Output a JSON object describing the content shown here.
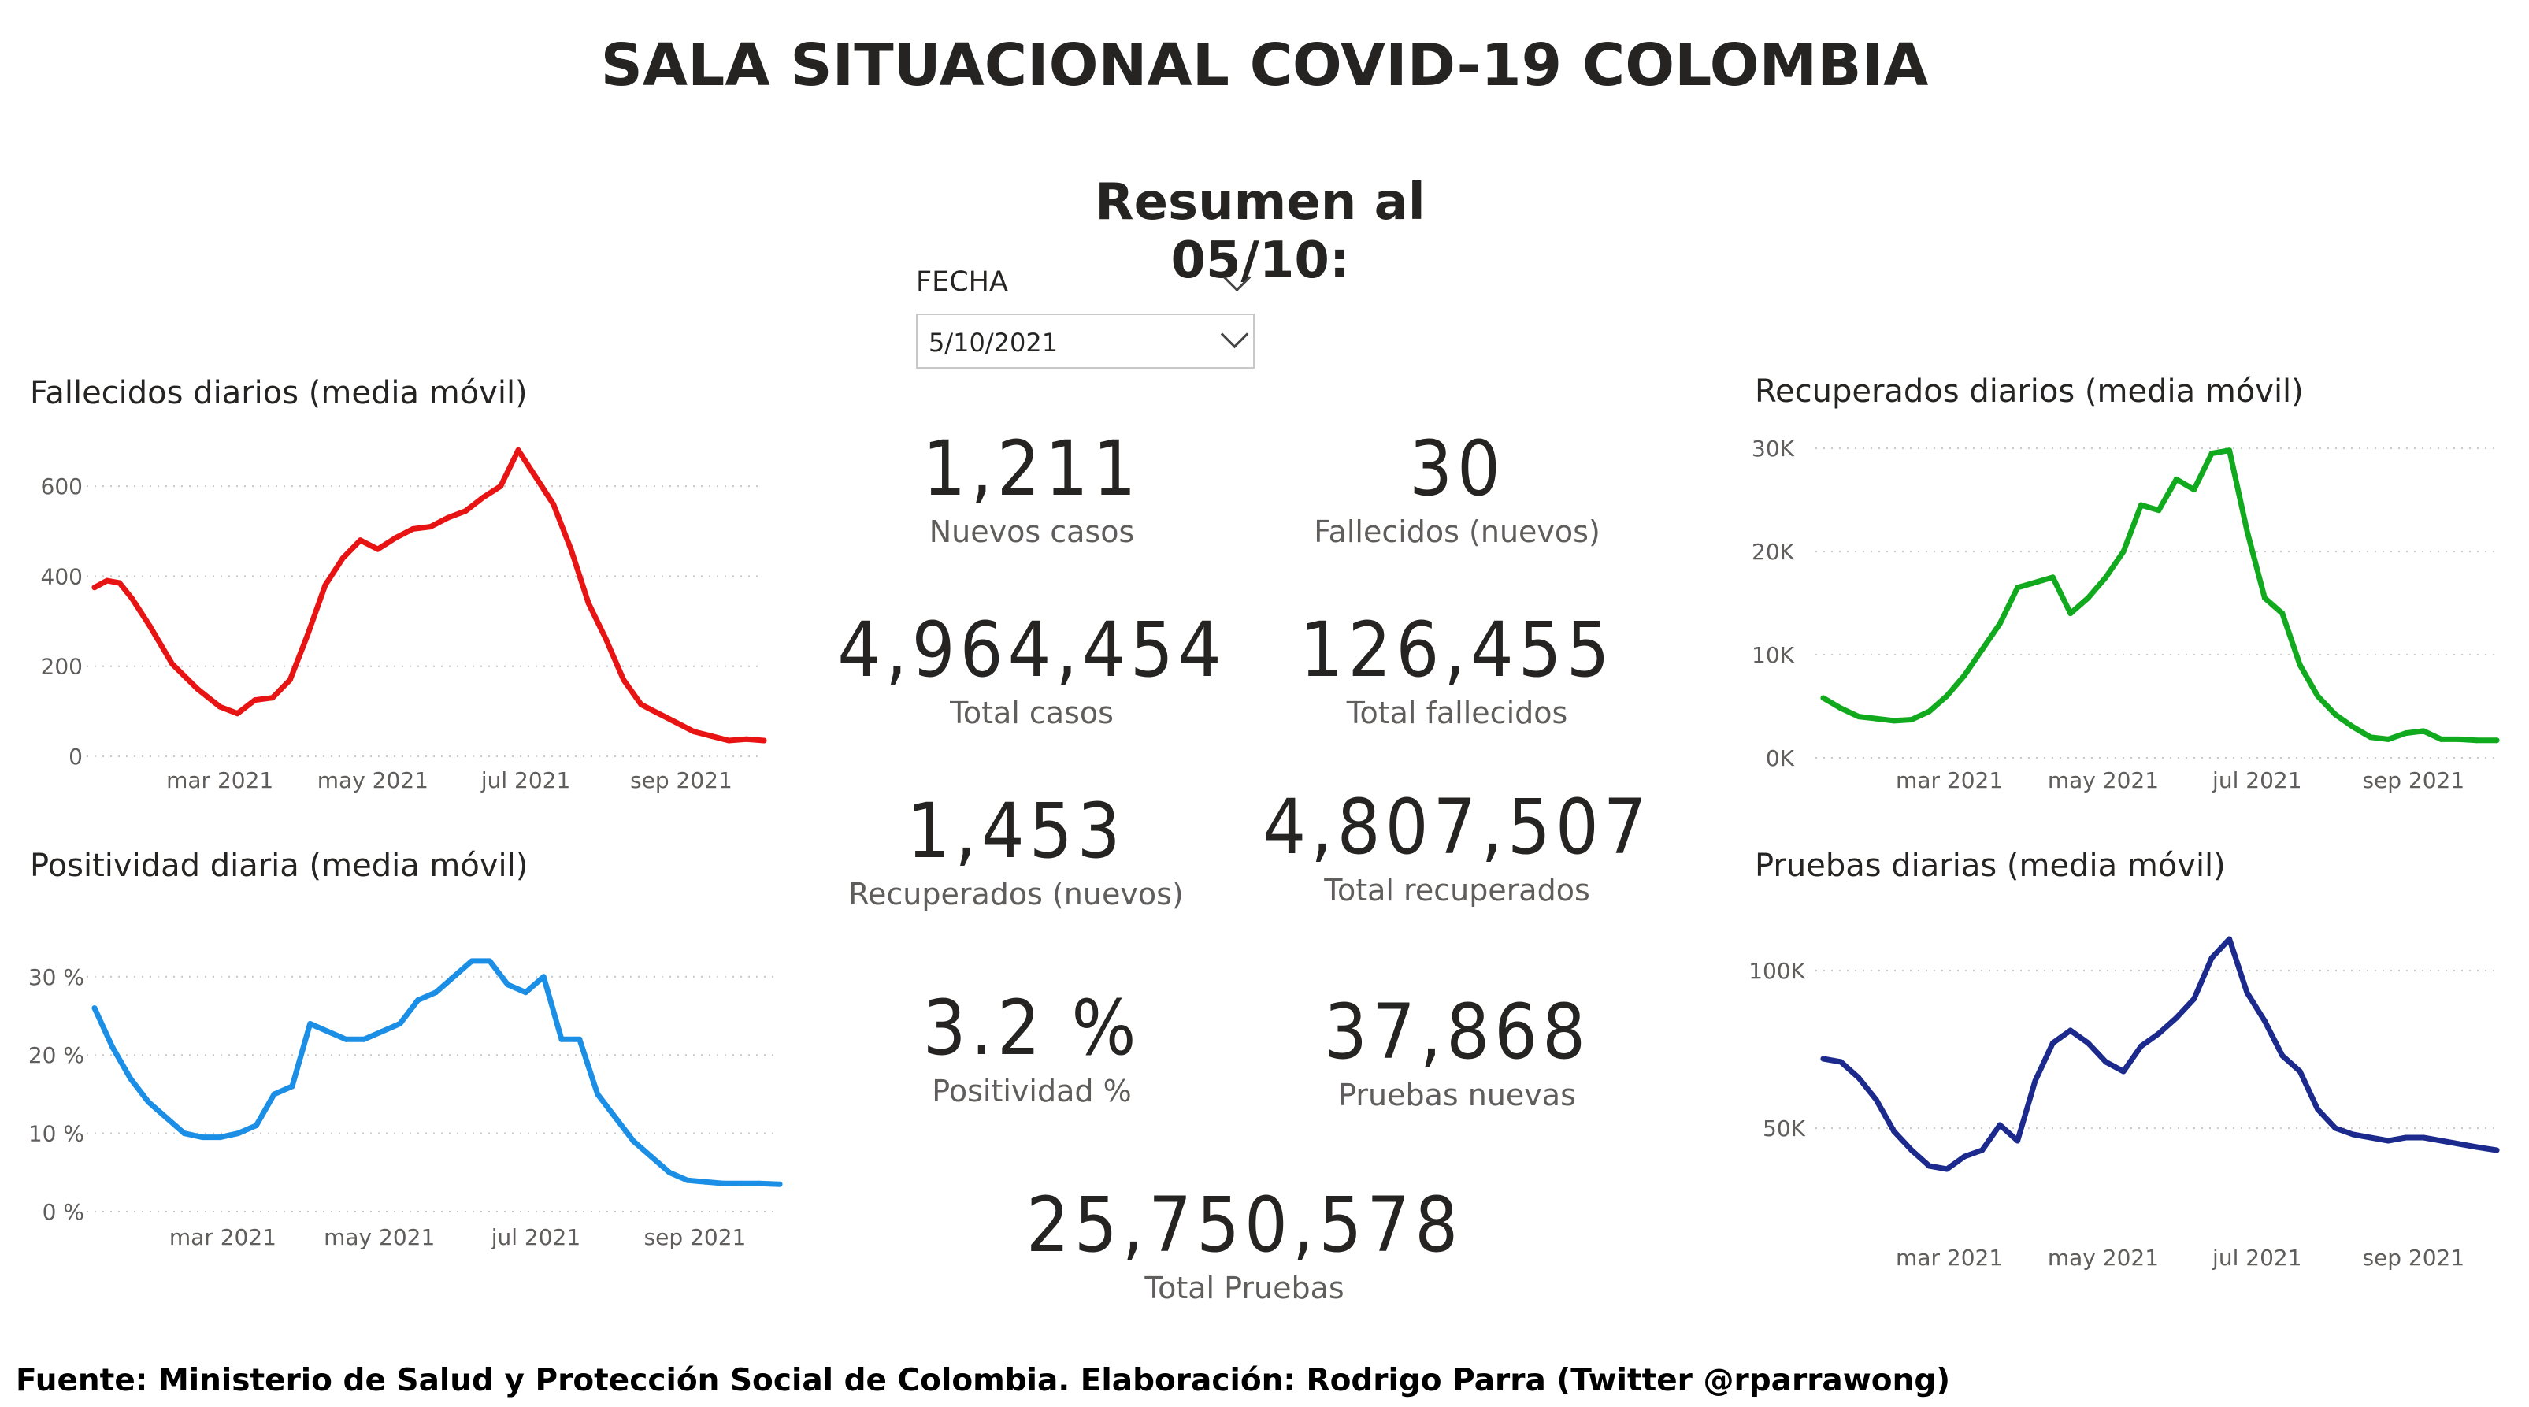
{
  "title": "SALA SITUACIONAL COVID-19 COLOMBIA",
  "subtitle": "Resumen al 05/10:",
  "slicer": {
    "label": "FECHA",
    "value": "5/10/2021"
  },
  "kpis": [
    {
      "value": "1,211",
      "label": "Nuevos casos"
    },
    {
      "value": "30",
      "label": "Fallecidos (nuevos)"
    },
    {
      "value": "4,964,454",
      "label": "Total casos"
    },
    {
      "value": "126,455",
      "label": "Total fallecidos"
    },
    {
      "value": "1,453",
      "label": "Recuperados (nuevos)"
    },
    {
      "value": "4,807,507",
      "label": "Total recuperados"
    },
    {
      "value": "3.2 %",
      "label": "Positividad %"
    },
    {
      "value": "37,868",
      "label": "Pruebas nuevas"
    },
    {
      "value": "25,750,578",
      "label": "Total Pruebas"
    }
  ],
  "footer": "Fuente: Ministerio de Salud y Protección Social de Colombia. Elaboración: Rodrigo Parra (Twitter @rparrawong)",
  "chart_data": [
    {
      "id": "fallecidos",
      "type": "line",
      "title": "Fallecidos diarios (media móvil)",
      "color": "#e81313",
      "x_ticks": [
        "mar 2021",
        "may 2021",
        "jul 2021",
        "sep 2021"
      ],
      "y_ticks": [
        "0",
        "200",
        "400",
        "600"
      ],
      "ylim": [
        0,
        700
      ],
      "grid": "horizontal dotted",
      "x": [
        "2021-01-10",
        "2021-01-15",
        "2021-01-20",
        "2021-01-25",
        "2021-02-01",
        "2021-02-10",
        "2021-02-20",
        "2021-03-01",
        "2021-03-08",
        "2021-03-15",
        "2021-03-22",
        "2021-03-29",
        "2021-04-05",
        "2021-04-12",
        "2021-04-19",
        "2021-04-26",
        "2021-05-03",
        "2021-05-10",
        "2021-05-17",
        "2021-05-24",
        "2021-05-31",
        "2021-06-07",
        "2021-06-14",
        "2021-06-21",
        "2021-06-28",
        "2021-07-05",
        "2021-07-12",
        "2021-07-19",
        "2021-07-26",
        "2021-08-02",
        "2021-08-09",
        "2021-08-16",
        "2021-08-23",
        "2021-08-30",
        "2021-09-06",
        "2021-09-13",
        "2021-09-20",
        "2021-09-27",
        "2021-10-04"
      ],
      "values": [
        375,
        390,
        385,
        350,
        290,
        205,
        150,
        110,
        95,
        125,
        130,
        170,
        270,
        380,
        440,
        480,
        460,
        485,
        505,
        510,
        530,
        545,
        575,
        600,
        680,
        620,
        560,
        460,
        340,
        260,
        170,
        115,
        95,
        75,
        55,
        45,
        35,
        38,
        35
      ]
    },
    {
      "id": "recuperados",
      "type": "line",
      "title": "Recuperados diarios (media móvil)",
      "color": "#11a91d",
      "x_ticks": [
        "mar 2021",
        "may 2021",
        "jul 2021",
        "sep 2021"
      ],
      "y_ticks": [
        "0K",
        "10K",
        "20K",
        "30K"
      ],
      "ylim": [
        0,
        31000
      ],
      "grid": "horizontal dotted",
      "x": [
        "2021-01-10",
        "2021-01-17",
        "2021-01-24",
        "2021-01-31",
        "2021-02-07",
        "2021-02-14",
        "2021-02-21",
        "2021-02-28",
        "2021-03-07",
        "2021-03-14",
        "2021-03-21",
        "2021-03-28",
        "2021-04-04",
        "2021-04-11",
        "2021-04-18",
        "2021-04-25",
        "2021-05-02",
        "2021-05-09",
        "2021-05-16",
        "2021-05-23",
        "2021-05-30",
        "2021-06-06",
        "2021-06-13",
        "2021-06-20",
        "2021-06-27",
        "2021-07-04",
        "2021-07-11",
        "2021-07-18",
        "2021-07-25",
        "2021-08-01",
        "2021-08-08",
        "2021-08-15",
        "2021-08-22",
        "2021-08-29",
        "2021-09-05",
        "2021-09-12",
        "2021-09-19",
        "2021-09-26",
        "2021-10-04"
      ],
      "values": [
        5800,
        4800,
        4000,
        3800,
        3600,
        3700,
        4500,
        6000,
        8000,
        10500,
        13000,
        16500,
        17000,
        17500,
        14000,
        15500,
        17500,
        20000,
        24500,
        24000,
        27000,
        26000,
        29500,
        29800,
        22000,
        15500,
        14000,
        9000,
        6000,
        4200,
        3000,
        2000,
        1800,
        2400,
        2600,
        1800,
        1800,
        1700,
        1700
      ]
    },
    {
      "id": "positividad",
      "type": "line",
      "title": "Positividad diaria (media móvil)",
      "color": "#1b8ee5",
      "x_ticks": [
        "mar 2021",
        "may 2021",
        "jul 2021",
        "sep 2021"
      ],
      "y_ticks": [
        "0 %",
        "10 %",
        "20 %",
        "30 %"
      ],
      "ylim": [
        0,
        33
      ],
      "grid": "horizontal dotted",
      "x": [
        "2021-01-10",
        "2021-01-17",
        "2021-01-24",
        "2021-01-31",
        "2021-02-07",
        "2021-02-14",
        "2021-02-21",
        "2021-02-28",
        "2021-03-07",
        "2021-03-14",
        "2021-03-21",
        "2021-03-28",
        "2021-04-04",
        "2021-04-11",
        "2021-04-18",
        "2021-04-25",
        "2021-05-02",
        "2021-05-09",
        "2021-05-16",
        "2021-05-23",
        "2021-05-30",
        "2021-06-06",
        "2021-06-13",
        "2021-06-20",
        "2021-06-27",
        "2021-07-04",
        "2021-07-11",
        "2021-07-18",
        "2021-07-25",
        "2021-08-01",
        "2021-08-08",
        "2021-08-15",
        "2021-08-22",
        "2021-08-29",
        "2021-09-05",
        "2021-09-12",
        "2021-09-19",
        "2021-09-26",
        "2021-10-04"
      ],
      "values": [
        26,
        21,
        17,
        14,
        12,
        10,
        9.5,
        9.5,
        10,
        11,
        15,
        16,
        24,
        23,
        22,
        22,
        23,
        24,
        27,
        28,
        30,
        32,
        32,
        29,
        28,
        30,
        22,
        22,
        15,
        12,
        9,
        7,
        5,
        4,
        3.8,
        3.6,
        3.6,
        3.6,
        3.5
      ]
    },
    {
      "id": "pruebas",
      "type": "line",
      "title": "Pruebas diarias (media móvil)",
      "color": "#1b2a8c",
      "x_ticks": [
        "mar 2021",
        "may 2021",
        "jul 2021",
        "sep 2021"
      ],
      "y_ticks": [
        "50K",
        "100K"
      ],
      "ylim": [
        33000,
        113000
      ],
      "grid": "horizontal dotted",
      "x": [
        "2021-01-10",
        "2021-01-17",
        "2021-01-24",
        "2021-01-31",
        "2021-02-07",
        "2021-02-14",
        "2021-02-21",
        "2021-02-28",
        "2021-03-07",
        "2021-03-14",
        "2021-03-21",
        "2021-03-28",
        "2021-04-04",
        "2021-04-11",
        "2021-04-18",
        "2021-04-25",
        "2021-05-02",
        "2021-05-09",
        "2021-05-16",
        "2021-05-23",
        "2021-05-30",
        "2021-06-06",
        "2021-06-13",
        "2021-06-20",
        "2021-06-27",
        "2021-07-04",
        "2021-07-11",
        "2021-07-18",
        "2021-07-25",
        "2021-08-01",
        "2021-08-08",
        "2021-08-15",
        "2021-08-22",
        "2021-08-29",
        "2021-09-05",
        "2021-09-12",
        "2021-09-19",
        "2021-09-26",
        "2021-10-04"
      ],
      "values": [
        72000,
        71000,
        66000,
        59000,
        49000,
        43000,
        38000,
        37000,
        41000,
        43000,
        51000,
        46000,
        65000,
        77000,
        81000,
        77000,
        71000,
        68000,
        76000,
        80000,
        85000,
        91000,
        104000,
        110000,
        93000,
        84000,
        73000,
        68000,
        56000,
        50000,
        48000,
        47000,
        46000,
        47000,
        47000,
        46000,
        45000,
        44000,
        43000
      ]
    }
  ]
}
